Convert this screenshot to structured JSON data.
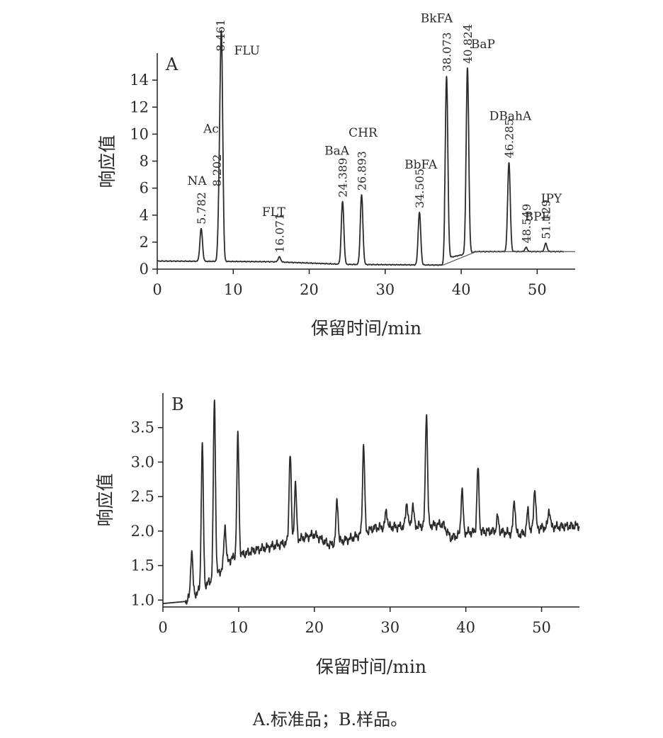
{
  "chart_data": [
    {
      "type": "line",
      "panel_label": "A",
      "xlabel": "保留时间/min",
      "ylabel": "响应值",
      "xlim": [
        0,
        55
      ],
      "ylim": [
        0,
        16
      ],
      "xticks": [
        0,
        10,
        20,
        30,
        40,
        50
      ],
      "yticks": [
        0,
        2,
        4,
        6,
        8,
        10,
        12,
        14
      ],
      "grid": false,
      "baseline_before_38": [
        [
          0,
          0.6
        ],
        [
          15,
          0.55
        ],
        [
          25,
          0.35
        ],
        [
          37.5,
          0.3
        ]
      ],
      "baseline_after_38": [
        [
          38,
          0.8
        ],
        [
          42,
          1.3
        ],
        [
          55,
          1.3
        ]
      ],
      "peaks": [
        {
          "name": "NA",
          "rt": "5.782",
          "x": 5.782,
          "y": 3.0
        },
        {
          "name": "Ac",
          "rt": "8.202",
          "x": 8.202,
          "y": 5.8
        },
        {
          "name": "FLU",
          "rt": "8.461",
          "x": 8.461,
          "y": 15.8
        },
        {
          "name": "FLT",
          "rt": "16.071",
          "x": 16.071,
          "y": 0.9
        },
        {
          "name": "BaA",
          "rt": "24.389",
          "x": 24.389,
          "y": 5.0
        },
        {
          "name": "CHR",
          "rt": "26.893",
          "x": 26.893,
          "y": 5.5
        },
        {
          "name": "BbFA",
          "rt": "34.505",
          "x": 34.505,
          "y": 4.2
        },
        {
          "name": "BkFA",
          "rt": "38.073",
          "x": 38.073,
          "y": 14.3
        },
        {
          "name": "BaP",
          "rt": "40.824",
          "x": 40.824,
          "y": 14.9
        },
        {
          "name": "DBahA",
          "rt": "46.285",
          "x": 46.285,
          "y": 7.9
        },
        {
          "name": "BPE",
          "rt": "48.549",
          "x": 48.549,
          "y": 1.6
        },
        {
          "name": "IPY",
          "rt": "51.129",
          "x": 51.129,
          "y": 1.9
        }
      ]
    },
    {
      "type": "line",
      "panel_label": "B",
      "xlabel": "保留时间/min",
      "ylabel": "响应值",
      "xlim": [
        0,
        55
      ],
      "ylim": [
        0.9,
        4.0
      ],
      "xticks": [
        0,
        10,
        20,
        30,
        40,
        50
      ],
      "yticks": [
        "1.0",
        "1.5",
        "2.0",
        "2.5",
        "3.0",
        "3.5"
      ],
      "grid": false,
      "baseline": [
        [
          0,
          0.95
        ],
        [
          3,
          0.98
        ],
        [
          5,
          1.15
        ],
        [
          7,
          1.35
        ],
        [
          9,
          1.6
        ],
        [
          12,
          1.72
        ],
        [
          16,
          1.82
        ],
        [
          20,
          1.95
        ],
        [
          22,
          1.8
        ],
        [
          25,
          1.9
        ],
        [
          28,
          2.05
        ],
        [
          35,
          2.08
        ],
        [
          37,
          2.1
        ],
        [
          38,
          1.9
        ],
        [
          40,
          1.98
        ],
        [
          44,
          2.0
        ],
        [
          47,
          1.95
        ],
        [
          50,
          2.05
        ],
        [
          55,
          2.08
        ]
      ],
      "peaks": [
        {
          "x": 3.8,
          "y": 1.72
        },
        {
          "x": 5.2,
          "y": 3.25
        },
        {
          "x": 6.8,
          "y": 3.9
        },
        {
          "x": 8.2,
          "y": 2.08
        },
        {
          "x": 9.9,
          "y": 3.38
        },
        {
          "x": 16.8,
          "y": 3.14
        },
        {
          "x": 17.5,
          "y": 2.68
        },
        {
          "x": 23.0,
          "y": 2.45
        },
        {
          "x": 26.5,
          "y": 3.25
        },
        {
          "x": 29.5,
          "y": 2.3
        },
        {
          "x": 32.2,
          "y": 2.42
        },
        {
          "x": 33.0,
          "y": 2.38
        },
        {
          "x": 34.8,
          "y": 3.72
        },
        {
          "x": 39.5,
          "y": 2.6
        },
        {
          "x": 41.6,
          "y": 2.9
        },
        {
          "x": 44.2,
          "y": 2.2
        },
        {
          "x": 46.4,
          "y": 2.45
        },
        {
          "x": 48.2,
          "y": 2.3
        },
        {
          "x": 49.1,
          "y": 2.62
        },
        {
          "x": 51.0,
          "y": 2.32
        }
      ]
    }
  ],
  "caption": "A.标准品；B.样品。"
}
